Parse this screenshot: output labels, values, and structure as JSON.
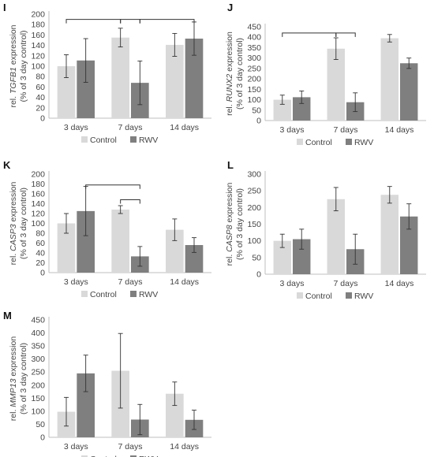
{
  "colors": {
    "control": "#d9d9d9",
    "rwv": "#7f7f7f",
    "axis": "#bfbfbf",
    "error": "#333333",
    "bracket": "#333333"
  },
  "chart_data": [
    {
      "panel": "I",
      "type": "bar",
      "ylabel_prefix": "rel. ",
      "ylabel_gene": "TGFB1",
      "ylabel_suffix": " expression",
      "ylabel_line2": "(% of 3 day control)",
      "ylim": [
        0,
        200
      ],
      "yticks": [
        0,
        20,
        40,
        60,
        80,
        100,
        120,
        140,
        160,
        180,
        200
      ],
      "categories": [
        "3 days",
        "7 days",
        "14 days"
      ],
      "series": [
        {
          "name": "Control",
          "values": [
            100,
            155,
            141
          ],
          "errors": [
            22,
            18,
            22
          ]
        },
        {
          "name": "RWV",
          "values": [
            111,
            68,
            153
          ],
          "errors": [
            42,
            42,
            32
          ]
        }
      ],
      "brackets": [
        {
          "from": [
            0,
            0
          ],
          "to": [
            1,
            0
          ],
          "y": 190
        },
        {
          "from": [
            1,
            0
          ],
          "to": [
            1,
            1
          ],
          "y": 190
        },
        {
          "from": [
            1,
            1
          ],
          "to": [
            2,
            1
          ],
          "y": 190
        }
      ],
      "legend": [
        "Control",
        "RWV"
      ]
    },
    {
      "panel": "J",
      "type": "bar",
      "ylabel_prefix": "rel. ",
      "ylabel_gene": "RUNX2",
      "ylabel_suffix": " expression",
      "ylabel_line2": "(% of 3 day control)",
      "ylim": [
        0,
        450
      ],
      "yticks": [
        0,
        50,
        100,
        150,
        200,
        250,
        300,
        350,
        400,
        450
      ],
      "categories": [
        "3 days",
        "7 days",
        "14 days"
      ],
      "series": [
        {
          "name": "Control",
          "values": [
            100,
            345,
            395
          ],
          "errors": [
            22,
            52,
            18
          ]
        },
        {
          "name": "RWV",
          "values": [
            112,
            88,
            275
          ],
          "errors": [
            30,
            45,
            25
          ]
        }
      ],
      "brackets": [
        {
          "from": [
            0,
            0
          ],
          "to": [
            1,
            0
          ],
          "y": 420
        },
        {
          "from": [
            1,
            0
          ],
          "to": [
            1,
            1
          ],
          "y": 420
        }
      ],
      "legend": [
        "Control",
        "RWV"
      ]
    },
    {
      "panel": "K",
      "type": "bar",
      "ylabel_prefix": "rel. ",
      "ylabel_gene": "CASP3",
      "ylabel_suffix": " expression",
      "ylabel_line2": "(% of 3 day control)",
      "ylim": [
        0,
        200
      ],
      "yticks": [
        0,
        20,
        40,
        60,
        80,
        100,
        120,
        140,
        160,
        180,
        200
      ],
      "categories": [
        "3 days",
        "7 days",
        "14 days"
      ],
      "series": [
        {
          "name": "Control",
          "values": [
            100,
            128,
            87
          ],
          "errors": [
            20,
            8,
            22
          ]
        },
        {
          "name": "RWV",
          "values": [
            125,
            33,
            56
          ],
          "errors": [
            50,
            20,
            15
          ]
        }
      ],
      "brackets": [
        {
          "from": [
            0,
            1
          ],
          "to": [
            1,
            1
          ],
          "y": 178
        },
        {
          "from": [
            1,
            0
          ],
          "to": [
            1,
            1
          ],
          "y": 148
        }
      ],
      "legend": [
        "Control",
        "RWV"
      ]
    },
    {
      "panel": "L",
      "type": "bar",
      "ylabel_prefix": "rel. ",
      "ylabel_gene": "CASP8",
      "ylabel_suffix": " expression",
      "ylabel_line2": "(% of 3 day control)",
      "ylim": [
        0,
        300
      ],
      "yticks": [
        0,
        50,
        100,
        150,
        200,
        250,
        300
      ],
      "categories": [
        "3 days",
        "7 days",
        "14 days"
      ],
      "series": [
        {
          "name": "Control",
          "values": [
            100,
            225,
            238
          ],
          "errors": [
            20,
            35,
            25
          ]
        },
        {
          "name": "RWV",
          "values": [
            105,
            75,
            173
          ],
          "errors": [
            30,
            45,
            38
          ]
        }
      ],
      "brackets": [],
      "legend": [
        "Control",
        "RWV"
      ]
    },
    {
      "panel": "M",
      "type": "bar",
      "ylabel_prefix": "rel. ",
      "ylabel_gene": "MMP13",
      "ylabel_suffix": " expression",
      "ylabel_line2": "(% of 3 day control)",
      "ylim": [
        0,
        450
      ],
      "yticks": [
        0,
        50,
        100,
        150,
        200,
        250,
        300,
        350,
        400,
        450
      ],
      "categories": [
        "3 days",
        "7 days",
        "14 days"
      ],
      "series": [
        {
          "name": "Control",
          "values": [
            98,
            255,
            167
          ],
          "errors": [
            55,
            143,
            45
          ]
        },
        {
          "name": "RWV",
          "values": [
            245,
            68,
            67
          ],
          "errors": [
            70,
            58,
            37
          ]
        }
      ],
      "brackets": [],
      "legend": [
        "Control",
        "RWV"
      ]
    }
  ]
}
